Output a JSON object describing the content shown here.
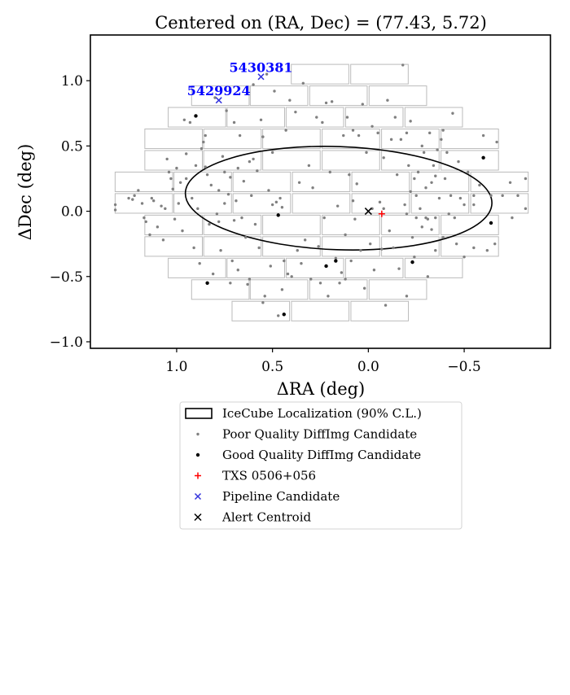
{
  "chart_data": {
    "type": "scatter",
    "title": "Centered on (RA, Dec) = (77.43, 5.72)",
    "xlabel": "ΔRA (deg)",
    "ylabel": "ΔDec (deg)",
    "xlim": [
      1.45,
      -0.95
    ],
    "ylim": [
      -1.05,
      1.35
    ],
    "x_inverted": true,
    "xticks": [
      1.0,
      0.5,
      0.0,
      -0.5
    ],
    "xtick_labels": [
      "1.0",
      "0.5",
      "0.0",
      "−0.5"
    ],
    "yticks": [
      1.0,
      0.5,
      0.0,
      -0.5,
      -1.0
    ],
    "ytick_labels": [
      "1.0",
      "0.5",
      "0.0",
      "−0.5",
      "−1.0"
    ],
    "grid": false,
    "legend_position": "below plot",
    "colors": {
      "poor": "#808080",
      "good": "#000000",
      "txs": "#ff0000",
      "pipeline": "#0000ff",
      "pipeline_marker": "#3333dd",
      "centroid": "#000000",
      "ccd": "#bbbbbb"
    },
    "ccd_rows": [
      {
        "dec": 1.05,
        "ra_centers": [
          0.252,
          -0.058
        ]
      },
      {
        "dec": 0.885,
        "ra_centers": [
          0.772,
          0.466,
          0.156,
          -0.154
        ]
      },
      {
        "dec": 0.72,
        "ra_centers": [
          0.894,
          0.587,
          0.279,
          -0.031,
          -0.341
        ]
      },
      {
        "dec": 0.555,
        "ra_centers": [
          1.016,
          0.709,
          0.401,
          0.091,
          -0.219,
          -0.529
        ]
      },
      {
        "dec": 0.39,
        "ra_centers": [
          1.016,
          0.709,
          0.401,
          0.091,
          -0.219,
          -0.529
        ]
      },
      {
        "dec": 0.225,
        "ra_centers": [
          1.171,
          0.864,
          0.556,
          0.246,
          -0.064,
          -0.374,
          -0.684
        ]
      },
      {
        "dec": 0.06,
        "ra_centers": [
          1.171,
          0.864,
          0.556,
          0.246,
          -0.064,
          -0.374,
          -0.684
        ]
      },
      {
        "dec": -0.105,
        "ra_centers": [
          1.016,
          0.709,
          0.401,
          0.091,
          -0.219,
          -0.529
        ]
      },
      {
        "dec": -0.27,
        "ra_centers": [
          1.016,
          0.709,
          0.401,
          0.091,
          -0.219,
          -0.529
        ]
      },
      {
        "dec": -0.435,
        "ra_centers": [
          0.894,
          0.587,
          0.279,
          -0.031,
          -0.341
        ]
      },
      {
        "dec": -0.6,
        "ra_centers": [
          0.772,
          0.466,
          0.156,
          -0.154
        ]
      },
      {
        "dec": -0.765,
        "ra_centers": [
          0.561,
          0.251,
          -0.059
        ]
      }
    ],
    "ccd_size": [
      0.3,
      0.15
    ],
    "localization_ellipse": {
      "label": "IceCube Localization (90% C.L.)",
      "center": [
        0.155,
        0.1
      ],
      "radii": [
        0.8,
        0.395
      ],
      "rotation_deg": 2
    },
    "series": [
      {
        "name": "Poor Quality DiffImg Candidate",
        "marker": "dot",
        "points": [
          [
            1.32,
            0.05
          ],
          [
            1.32,
            0.01
          ],
          [
            1.25,
            0.1
          ],
          [
            1.23,
            0.09
          ],
          [
            1.22,
            0.12
          ],
          [
            1.2,
            0.16
          ],
          [
            1.18,
            0.06
          ],
          [
            1.17,
            -0.05
          ],
          [
            1.16,
            -0.08
          ],
          [
            1.14,
            -0.18
          ],
          [
            1.13,
            0.1
          ],
          [
            1.12,
            0.08
          ],
          [
            1.1,
            -0.12
          ],
          [
            1.08,
            0.04
          ],
          [
            1.07,
            -0.22
          ],
          [
            1.06,
            0.02
          ],
          [
            1.05,
            0.4
          ],
          [
            1.04,
            0.3
          ],
          [
            1.03,
            0.25
          ],
          [
            1.02,
            0.17
          ],
          [
            1.01,
            -0.06
          ],
          [
            1.0,
            0.33
          ],
          [
            0.99,
            0.06
          ],
          [
            0.98,
            0.22
          ],
          [
            0.97,
            -0.15
          ],
          [
            0.96,
            0.7
          ],
          [
            0.95,
            0.44
          ],
          [
            0.93,
            0.68
          ],
          [
            0.92,
            0.1
          ],
          [
            0.91,
            -0.28
          ],
          [
            0.9,
            0.35
          ],
          [
            0.89,
            0.02
          ],
          [
            0.88,
            -0.4
          ],
          [
            0.87,
            0.48
          ],
          [
            0.86,
            0.53
          ],
          [
            0.85,
            0.58
          ],
          [
            0.84,
            0.28
          ],
          [
            0.83,
            -0.1
          ],
          [
            0.82,
            0.2
          ],
          [
            0.81,
            -0.48
          ],
          [
            0.8,
            0.87
          ],
          [
            0.79,
            -0.02
          ],
          [
            0.78,
            0.16
          ],
          [
            0.77,
            -0.3
          ],
          [
            0.76,
            0.42
          ],
          [
            0.75,
            0.06
          ],
          [
            0.74,
            0.77
          ],
          [
            0.73,
            0.13
          ],
          [
            0.72,
            0.26
          ],
          [
            0.71,
            -0.38
          ],
          [
            0.7,
            0.68
          ],
          [
            0.69,
            0.08
          ],
          [
            0.68,
            -0.45
          ],
          [
            0.67,
            0.58
          ],
          [
            0.66,
            -0.05
          ],
          [
            0.65,
            0.23
          ],
          [
            0.64,
            -0.2
          ],
          [
            0.63,
            -0.56
          ],
          [
            0.62,
            0.38
          ],
          [
            0.61,
            0.12
          ],
          [
            0.6,
            0.97
          ],
          [
            0.59,
            -0.1
          ],
          [
            0.58,
            0.31
          ],
          [
            0.57,
            -0.28
          ],
          [
            0.56,
            0.7
          ],
          [
            0.55,
            0.57
          ],
          [
            0.54,
            -0.65
          ],
          [
            0.53,
            1.05
          ],
          [
            0.52,
            0.16
          ],
          [
            0.51,
            -0.42
          ],
          [
            0.5,
            0.45
          ],
          [
            0.49,
            0.92
          ],
          [
            0.48,
            0.07
          ],
          [
            0.47,
            -0.8
          ],
          [
            0.46,
            0.1
          ],
          [
            0.45,
            0.03
          ],
          [
            0.44,
            -0.38
          ],
          [
            0.43,
            0.62
          ],
          [
            0.42,
            -0.48
          ],
          [
            0.41,
            0.85
          ],
          [
            0.4,
            -0.5
          ],
          [
            0.38,
            0.76
          ],
          [
            0.37,
            -0.3
          ],
          [
            0.36,
            0.22
          ],
          [
            0.34,
            0.98
          ],
          [
            0.33,
            -0.22
          ],
          [
            0.31,
            0.35
          ],
          [
            0.3,
            -0.52
          ],
          [
            0.29,
            0.18
          ],
          [
            0.27,
            0.72
          ],
          [
            0.26,
            -0.27
          ],
          [
            0.24,
            0.68
          ],
          [
            0.23,
            -0.05
          ],
          [
            0.22,
            0.83
          ],
          [
            0.21,
            -0.65
          ],
          [
            0.2,
            0.3
          ],
          [
            0.19,
            0.84
          ],
          [
            0.17,
            -0.36
          ],
          [
            0.16,
            0.04
          ],
          [
            0.14,
            -0.47
          ],
          [
            0.13,
            0.58
          ],
          [
            0.12,
            -0.18
          ],
          [
            0.11,
            0.72
          ],
          [
            0.1,
            0.28
          ],
          [
            0.09,
            -0.38
          ],
          [
            0.08,
            0.62
          ],
          [
            0.07,
            -0.06
          ],
          [
            0.06,
            0.21
          ],
          [
            0.05,
            0.58
          ],
          [
            0.04,
            -0.3
          ],
          [
            0.03,
            0.82
          ],
          [
            0.02,
            -0.59
          ],
          [
            0.01,
            0.45
          ],
          [
            -0.01,
            -0.25
          ],
          [
            -0.02,
            0.65
          ],
          [
            -0.03,
            -0.45
          ],
          [
            -0.05,
            0.6
          ],
          [
            -0.06,
            0.07
          ],
          [
            -0.07,
            -0.29
          ],
          [
            -0.08,
            0.41
          ],
          [
            -0.09,
            -0.72
          ],
          [
            -0.1,
            0.85
          ],
          [
            -0.11,
            -0.15
          ],
          [
            -0.12,
            0.55
          ],
          [
            -0.13,
            -0.28
          ],
          [
            -0.14,
            0.72
          ],
          [
            -0.15,
            0.28
          ],
          [
            -0.16,
            -0.44
          ],
          [
            -0.17,
            0.55
          ],
          [
            -0.18,
            1.12
          ],
          [
            -0.19,
            0.05
          ],
          [
            -0.2,
            -0.65
          ],
          [
            -0.21,
            0.35
          ],
          [
            -0.22,
            0.69
          ],
          [
            -0.23,
            -0.2
          ],
          [
            -0.24,
            0.25
          ],
          [
            -0.25,
            0.12
          ],
          [
            -0.26,
            0.3
          ],
          [
            -0.27,
            0.02
          ],
          [
            -0.28,
            -0.12
          ],
          [
            -0.29,
            0.45
          ],
          [
            -0.3,
            0.18
          ],
          [
            -0.31,
            -0.06
          ],
          [
            -0.32,
            0.6
          ],
          [
            -0.33,
            -0.14
          ],
          [
            -0.34,
            0.35
          ],
          [
            -0.35,
            -0.3
          ],
          [
            -0.36,
            0.47
          ],
          [
            -0.37,
            0.1
          ],
          [
            -0.38,
            0.55
          ],
          [
            -0.39,
            -0.2
          ],
          [
            -0.4,
            0.25
          ],
          [
            -0.41,
            0.45
          ],
          [
            -0.42,
            -0.02
          ],
          [
            -0.43,
            0.12
          ],
          [
            -0.44,
            0.75
          ],
          [
            -0.46,
            -0.25
          ],
          [
            -0.48,
            0.1
          ],
          [
            -0.5,
            -0.35
          ],
          [
            -0.52,
            0.3
          ],
          [
            -0.55,
            -0.28
          ],
          [
            -0.58,
            0.2
          ],
          [
            -0.6,
            0.58
          ],
          [
            -0.62,
            -0.3
          ],
          [
            -0.64,
            0.12
          ],
          [
            -0.67,
            0.53
          ],
          [
            -0.7,
            0.12
          ],
          [
            -0.75,
            -0.05
          ],
          [
            -0.78,
            0.12
          ],
          [
            -0.82,
            0.25
          ],
          [
            -0.82,
            0.02
          ],
          [
            -0.74,
            0.22
          ],
          [
            -0.66,
            -0.25
          ],
          [
            -0.55,
            0.05
          ],
          [
            -0.47,
            0.38
          ],
          [
            -0.39,
            0.62
          ],
          [
            -0.31,
            -0.5
          ],
          [
            -0.28,
            0.5
          ],
          [
            -0.24,
            -0.35
          ],
          [
            -0.2,
            0.6
          ],
          [
            0.15,
            -0.55
          ],
          [
            0.25,
            -0.55
          ],
          [
            0.45,
            -0.6
          ],
          [
            0.55,
            -0.7
          ],
          [
            0.62,
            -0.52
          ],
          [
            0.72,
            -0.55
          ],
          [
            0.78,
            -0.08
          ],
          [
            0.68,
            0.33
          ],
          [
            0.6,
            0.4
          ],
          [
            0.5,
            0.05
          ],
          [
            0.35,
            -0.4
          ],
          [
            0.22,
            -0.42
          ],
          [
            0.12,
            -0.52
          ],
          [
            0.08,
            0.08
          ],
          [
            -0.02,
            0.02
          ],
          [
            -0.08,
            0.02
          ],
          [
            -0.22,
            0.15
          ],
          [
            -0.25,
            -0.05
          ],
          [
            -0.3,
            -0.05
          ],
          [
            -0.35,
            -0.05
          ],
          [
            -0.45,
            -0.05
          ],
          [
            -0.5,
            0.05
          ],
          [
            -0.55,
            0.12
          ],
          [
            -0.35,
            0.27
          ],
          [
            -0.33,
            0.22
          ],
          [
            -0.2,
            -0.02
          ],
          [
            0.7,
            -0.07
          ],
          [
            0.75,
            0.3
          ],
          [
            0.85,
            0.34
          ],
          [
            0.95,
            0.25
          ]
        ]
      },
      {
        "name": "Good Quality DiffImg Candidate",
        "marker": "dot",
        "points": [
          [
            0.9,
            0.73
          ],
          [
            0.84,
            -0.55
          ],
          [
            0.47,
            -0.03
          ],
          [
            0.44,
            -0.79
          ],
          [
            0.22,
            -0.42
          ],
          [
            0.17,
            -0.38
          ],
          [
            -0.23,
            -0.39
          ],
          [
            -0.6,
            0.41
          ],
          [
            -0.64,
            -0.09
          ]
        ]
      },
      {
        "name": "TXS 0506+056",
        "marker": "plus",
        "points": [
          [
            -0.07,
            -0.02
          ]
        ]
      },
      {
        "name": "Pipeline Candidate",
        "marker": "x",
        "points": [
          [
            0.56,
            1.03
          ],
          [
            0.78,
            0.85
          ]
        ],
        "labels": [
          "5430381",
          "5429924"
        ]
      },
      {
        "name": "Alert Centroid",
        "marker": "x",
        "points": [
          [
            0.0,
            0.0
          ]
        ]
      }
    ]
  }
}
